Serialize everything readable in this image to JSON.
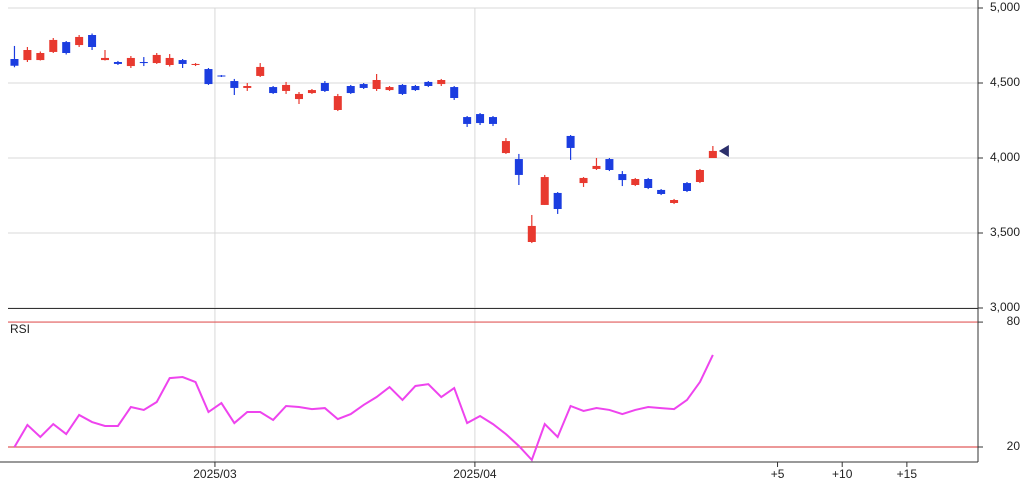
{
  "chart_data": [
    {
      "type": "candlestick",
      "open": [
        4660,
        4653,
        4653,
        4707,
        4773,
        4753,
        4820,
        4653,
        4640,
        4613,
        4640,
        4633,
        4620,
        4653,
        4620,
        4593,
        4550,
        4513,
        4467,
        4547,
        4473,
        4447,
        4393,
        4433,
        4500,
        4320,
        4480,
        4493,
        4460,
        4453,
        4487,
        4480,
        4507,
        4493,
        4473,
        4273,
        4293,
        4273,
        4033,
        3993,
        3440,
        3687,
        3767,
        4147,
        3833,
        3927,
        3993,
        3893,
        3820,
        3860,
        3787,
        3700,
        3833,
        3840,
        4000
      ],
      "high": [
        4747,
        4740,
        4710,
        4800,
        4780,
        4820,
        4830,
        4720,
        4647,
        4680,
        4673,
        4700,
        4693,
        4660,
        4633,
        4600,
        4553,
        4527,
        4500,
        4633,
        4480,
        4507,
        4440,
        4460,
        4513,
        4427,
        4487,
        4500,
        4560,
        4480,
        4493,
        4487,
        4513,
        4527,
        4480,
        4280,
        4300,
        4280,
        4133,
        4027,
        3620,
        3887,
        3773,
        4153,
        3873,
        4000,
        4000,
        3913,
        3867,
        3867,
        3793,
        3727,
        3840,
        3927,
        4080
      ],
      "low": [
        4605,
        4640,
        4650,
        4700,
        4690,
        4740,
        4720,
        4650,
        4620,
        4600,
        4613,
        4627,
        4610,
        4600,
        4613,
        4487,
        4540,
        4420,
        4447,
        4540,
        4427,
        4427,
        4360,
        4427,
        4440,
        4313,
        4427,
        4460,
        4447,
        4447,
        4420,
        4447,
        4473,
        4480,
        4387,
        4207,
        4220,
        4213,
        4027,
        3820,
        3433,
        3687,
        3627,
        3987,
        3807,
        3920,
        3913,
        3813,
        3813,
        3793,
        3753,
        3693,
        3773,
        3833,
        4000
      ],
      "close": [
        4615,
        4720,
        4700,
        4787,
        4700,
        4807,
        4740,
        4667,
        4627,
        4667,
        4633,
        4687,
        4667,
        4627,
        4627,
        4493,
        4547,
        4467,
        4480,
        4607,
        4433,
        4487,
        4427,
        4453,
        4447,
        4413,
        4433,
        4467,
        4520,
        4473,
        4427,
        4453,
        4480,
        4520,
        4400,
        4227,
        4233,
        4227,
        4113,
        3887,
        3547,
        3873,
        3660,
        4067,
        3867,
        3947,
        3920,
        3853,
        3860,
        3800,
        3760,
        3720,
        3780,
        3920,
        4047
      ],
      "up_color": "#e8392f",
      "down_color": "#1b3de0",
      "marker_color": "#2b2f6b",
      "xlim": [
        -0.5,
        74.5
      ],
      "xticks": [
        {
          "value": 15.5,
          "label": "2025/03"
        },
        {
          "value": 35.6,
          "label": "2025/04"
        },
        {
          "value": 59,
          "label": "+5"
        },
        {
          "value": 64,
          "label": "+10"
        },
        {
          "value": 69,
          "label": "+15"
        }
      ],
      "ylim": [
        3000,
        5000
      ],
      "yticks": [
        {
          "value": 3000,
          "label": "3,000"
        },
        {
          "value": 3500,
          "label": "3,500"
        },
        {
          "value": 4000,
          "label": "4,000"
        },
        {
          "value": 4500,
          "label": "4,500"
        },
        {
          "value": 5000,
          "label": "5,000"
        }
      ],
      "grid": true
    },
    {
      "type": "line",
      "title": "RSI",
      "values": [
        20.0,
        30.6,
        24.8,
        31.0,
        26.2,
        35.4,
        32.0,
        30.1,
        30.1,
        39.2,
        37.8,
        41.6,
        53.1,
        53.6,
        51.2,
        36.8,
        41.1,
        31.5,
        36.8,
        36.8,
        33.0,
        39.7,
        39.2,
        38.2,
        38.7,
        33.4,
        35.8,
        40.2,
        44.0,
        48.8,
        42.6,
        49.3,
        50.2,
        44.0,
        48.3,
        31.5,
        34.9,
        31.0,
        26.2,
        20.5,
        13.8,
        31.0,
        24.8,
        39.7,
        37.3,
        38.7,
        37.8,
        35.8,
        37.8,
        39.2,
        38.7,
        38.2,
        42.6,
        51.2,
        64.2
      ],
      "color": "#ee44ee",
      "tick_line_color": "#e05a5a",
      "xlim": [
        -0.5,
        74.5
      ],
      "ylim": [
        12.8,
        85.8
      ],
      "yticks": [
        20,
        80
      ]
    }
  ]
}
